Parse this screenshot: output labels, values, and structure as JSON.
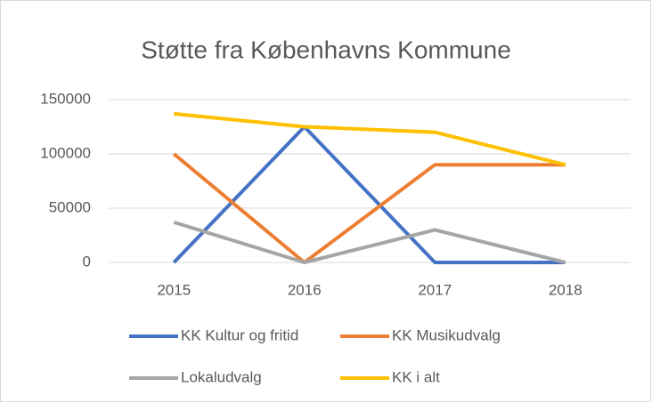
{
  "chart_data": {
    "type": "line",
    "title": "Støtte fra Københavns Kommune",
    "categories": [
      "2015",
      "2016",
      "2017",
      "2018"
    ],
    "series": [
      {
        "name": "KK Kultur og fritid",
        "color": "#4472c4",
        "values": [
          0,
          125000,
          0,
          0
        ]
      },
      {
        "name": "KK Musikudvalg",
        "color": "#ed7d31",
        "values": [
          100000,
          0,
          90000,
          90000
        ]
      },
      {
        "name": "Lokaludvalg",
        "color": "#a5a5a5",
        "values": [
          37000,
          0,
          30000,
          0
        ]
      },
      {
        "name": "KK i alt",
        "color": "#ffc000",
        "values": [
          137000,
          125000,
          120000,
          90000
        ]
      }
    ],
    "ylim": [
      0,
      150000
    ],
    "yticks": [
      0,
      50000,
      100000,
      150000
    ],
    "grid": true,
    "legend": "bottom"
  }
}
